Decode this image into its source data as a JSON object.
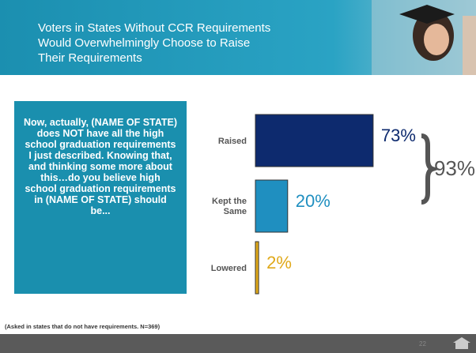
{
  "chart_data": {
    "type": "bar",
    "orientation": "horizontal",
    "title": "Voters in States Without CCR Requirements Would Overwhelmingly Choose to Raise Their Requirements",
    "question": "Now, actually, (NAME OF STATE) does NOT have all the high school graduation requirements I just described. Knowing that, and thinking some more about this…do you believe high school graduation requirements in (NAME OF STATE) should be...",
    "categories": [
      "Raised",
      "Kept the Same",
      "Lowered"
    ],
    "values": [
      73,
      20,
      2
    ],
    "value_labels": [
      "73%",
      "20%",
      "2%"
    ],
    "colors": [
      "#0d2a6e",
      "#1f8fc0",
      "#e0a91a"
    ],
    "annotation": "93%",
    "note": "(Asked in states that do not have requirements. N=369)",
    "page_number": "22"
  }
}
